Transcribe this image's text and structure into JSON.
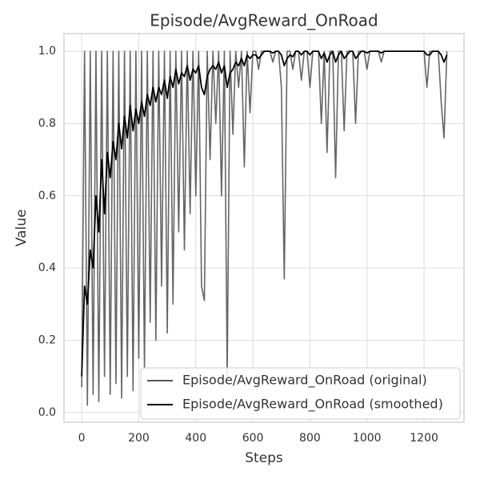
{
  "chart_data": {
    "type": "line",
    "title": "Episode/AvgReward_OnRoad",
    "xlabel": "Steps",
    "ylabel": "Value",
    "x": [
      0,
      10,
      20,
      30,
      40,
      50,
      60,
      70,
      80,
      90,
      100,
      110,
      120,
      130,
      140,
      150,
      160,
      170,
      180,
      190,
      200,
      210,
      220,
      230,
      240,
      250,
      260,
      270,
      280,
      290,
      300,
      310,
      320,
      330,
      340,
      350,
      360,
      370,
      380,
      390,
      400,
      410,
      420,
      430,
      440,
      450,
      460,
      470,
      480,
      490,
      500,
      510,
      520,
      530,
      540,
      550,
      560,
      570,
      580,
      590,
      600,
      610,
      620,
      630,
      640,
      650,
      660,
      670,
      680,
      690,
      700,
      710,
      720,
      730,
      740,
      750,
      760,
      770,
      780,
      790,
      800,
      810,
      820,
      830,
      840,
      850,
      860,
      870,
      880,
      890,
      900,
      910,
      920,
      930,
      940,
      950,
      960,
      970,
      980,
      990,
      1000,
      1010,
      1020,
      1030,
      1040,
      1050,
      1060,
      1070,
      1080,
      1090,
      1100,
      1110,
      1120,
      1130,
      1140,
      1150,
      1160,
      1170,
      1180,
      1190,
      1200,
      1210,
      1220,
      1230,
      1240,
      1250,
      1260,
      1270,
      1280
    ],
    "series": [
      {
        "name": "Episode/AvgReward_OnRoad (original)",
        "color": "#555555",
        "values": [
          0.07,
          1.0,
          0.02,
          1.0,
          0.05,
          1.0,
          0.03,
          1.0,
          0.1,
          1.0,
          0.05,
          1.0,
          0.08,
          1.0,
          0.04,
          1.0,
          0.1,
          1.0,
          0.06,
          1.0,
          0.15,
          1.0,
          0.12,
          1.0,
          0.25,
          1.0,
          0.2,
          1.0,
          0.35,
          1.0,
          0.22,
          1.0,
          0.3,
          1.0,
          0.5,
          1.0,
          0.45,
          1.0,
          0.55,
          1.0,
          0.6,
          1.0,
          0.35,
          0.31,
          1.0,
          0.7,
          1.0,
          0.8,
          1.0,
          0.6,
          1.0,
          0.1,
          1.0,
          0.77,
          1.0,
          0.9,
          1.0,
          0.68,
          1.0,
          0.83,
          1.0,
          1.0,
          0.95,
          1.0,
          1.0,
          1.0,
          1.0,
          0.97,
          1.0,
          1.0,
          0.9,
          0.37,
          1.0,
          1.0,
          0.95,
          1.0,
          1.0,
          0.92,
          1.0,
          1.0,
          0.9,
          1.0,
          1.0,
          1.0,
          0.8,
          1.0,
          0.72,
          1.0,
          1.0,
          0.65,
          1.0,
          1.0,
          0.78,
          1.0,
          1.0,
          1.0,
          0.8,
          1.0,
          1.0,
          1.0,
          0.95,
          1.0,
          1.0,
          1.0,
          1.0,
          0.97,
          1.0,
          1.0,
          1.0,
          1.0,
          1.0,
          1.0,
          1.0,
          1.0,
          1.0,
          1.0,
          1.0,
          1.0,
          1.0,
          1.0,
          1.0,
          0.9,
          1.0,
          1.0,
          1.0,
          1.0,
          0.86,
          0.76,
          1.0
        ]
      },
      {
        "name": "Episode/AvgReward_OnRoad (smoothed)",
        "color": "#000000",
        "values": [
          0.1,
          0.35,
          0.3,
          0.45,
          0.4,
          0.6,
          0.5,
          0.7,
          0.55,
          0.72,
          0.65,
          0.75,
          0.7,
          0.8,
          0.73,
          0.82,
          0.76,
          0.85,
          0.78,
          0.84,
          0.8,
          0.86,
          0.82,
          0.88,
          0.85,
          0.9,
          0.86,
          0.9,
          0.88,
          0.92,
          0.87,
          0.93,
          0.9,
          0.95,
          0.91,
          0.94,
          0.93,
          0.96,
          0.92,
          0.95,
          0.94,
          0.96,
          0.9,
          0.88,
          0.93,
          0.95,
          0.96,
          0.95,
          0.97,
          0.94,
          0.96,
          0.9,
          0.94,
          0.95,
          0.97,
          0.96,
          0.98,
          0.96,
          0.99,
          0.98,
          0.99,
          0.99,
          0.98,
          0.99,
          1.0,
          1.0,
          1.0,
          0.995,
          1.0,
          1.0,
          0.99,
          0.96,
          0.98,
          0.99,
          0.985,
          1.0,
          1.0,
          0.99,
          1.0,
          1.0,
          0.99,
          1.0,
          1.0,
          1.0,
          0.98,
          0.995,
          0.97,
          0.99,
          1.0,
          0.97,
          0.99,
          1.0,
          0.98,
          0.99,
          1.0,
          1.0,
          0.98,
          0.99,
          1.0,
          1.0,
          0.995,
          1.0,
          1.0,
          1.0,
          1.0,
          0.995,
          1.0,
          1.0,
          1.0,
          1.0,
          1.0,
          1.0,
          1.0,
          1.0,
          1.0,
          1.0,
          1.0,
          1.0,
          1.0,
          1.0,
          1.0,
          0.99,
          0.99,
          1.0,
          1.0,
          1.0,
          0.99,
          0.97,
          0.99
        ]
      }
    ],
    "xlim": [
      -62,
      1340
    ],
    "ylim": [
      -0.027,
      1.049
    ],
    "xticks": [
      0,
      200,
      400,
      600,
      800,
      1000,
      1200
    ],
    "yticks": [
      {
        "value": 0,
        "label": "0.0"
      },
      0.2,
      0.4,
      0.6,
      0.8,
      {
        "value": 1,
        "label": "1.0"
      }
    ],
    "grid": true,
    "legend": "lower right"
  }
}
